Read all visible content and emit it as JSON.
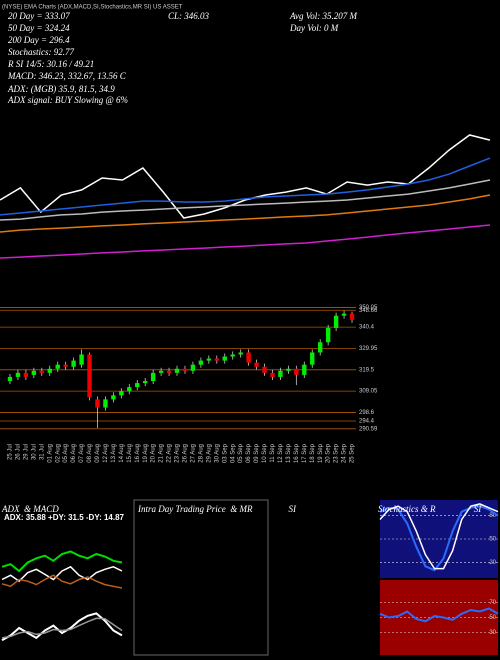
{
  "chart_data": [
    {
      "type": "line",
      "annotations": [
        "(NYSE) EMA Charts (ADX,MACD,SI,Stochastics,MR SI) US ASSET",
        "20 Day = 333.07",
        "50 Day = 324.24",
        "200 Day = 296.4",
        "Stochastics: 92.77",
        "R SI 14/5: 30.16 / 49.21",
        "MACD: 346.23, 332.67, 13.56 C",
        "ADX: (MGB) 35.9, 81.5, 34.9",
        "ADX signal: BUY Slowing @ 6%",
        "CL: 346.03",
        "Avg Vol: 35.207 M",
        "Day Vol: 0 M"
      ],
      "categories": [
        null,
        null,
        null,
        null,
        null,
        null,
        null,
        null,
        null,
        null,
        null,
        null,
        null,
        null,
        null,
        null,
        null,
        null,
        null,
        null,
        null,
        null,
        null,
        null,
        null
      ],
      "ylim": [
        0,
        100
      ],
      "series": [
        {
          "color": "#ffffff",
          "values": [
            50,
            56.7,
            43.3,
            52.8,
            55.6,
            62.2,
            61.1,
            67.8,
            54.4,
            40,
            42.2,
            45.6,
            50,
            52.8,
            54.4,
            56.7,
            53.3,
            60,
            58.3,
            60,
            58.9,
            67.8,
            77.8,
            86.1,
            83.3
          ]
        },
        {
          "color": "#bbbbbb",
          "values": [
            38.9,
            39.4,
            40.6,
            41.7,
            42.2,
            43.3,
            43.9,
            44.4,
            45,
            45.6,
            46.1,
            46.7,
            47.2,
            47.8,
            48.3,
            48.9,
            49.4,
            50,
            51.1,
            52.2,
            53.3,
            55,
            56.7,
            58.9,
            61.1
          ]
        },
        {
          "color": "#1f5fe0",
          "values": [
            41.7,
            42.8,
            43.9,
            45,
            46.1,
            47.2,
            48.3,
            49.4,
            49.4,
            48.9,
            48.9,
            49.4,
            50.6,
            51.7,
            52.2,
            52.8,
            53.3,
            54.4,
            55.6,
            57.2,
            58.9,
            61.1,
            64.4,
            68.9,
            73.3
          ]
        },
        {
          "color": "#e07a10",
          "values": [
            32.2,
            33.3,
            33.9,
            34.4,
            35,
            35.6,
            36.1,
            36.7,
            37.2,
            37.8,
            38.3,
            38.9,
            39.4,
            40,
            40.6,
            41.1,
            41.7,
            42.8,
            43.9,
            45,
            46.1,
            47.2,
            48.9,
            50.6,
            52.8
          ]
        },
        {
          "color": "#d020d0",
          "values": [
            17.8,
            18.3,
            18.9,
            19.4,
            20,
            20.6,
            21.1,
            21.7,
            22.2,
            22.8,
            23.3,
            23.9,
            24.4,
            25,
            25.6,
            26.1,
            27.2,
            28.3,
            29.4,
            30.6,
            31.7,
            32.8,
            33.9,
            35,
            36.1
          ]
        }
      ]
    },
    {
      "type": "candlestick",
      "categories": [
        "25 Jul",
        "26 Jul",
        "29 Jul",
        "30 Jul",
        "31 Jul",
        "01 Aug",
        "02 Aug",
        "05 Aug",
        "06 Aug",
        "07 Aug",
        "08 Aug",
        "09 Aug",
        "12 Aug",
        "13 Aug",
        "14 Aug",
        "15 Aug",
        "16 Aug",
        "19 Aug",
        "20 Aug",
        "21 Aug",
        "22 Aug",
        "23 Aug",
        "26 Aug",
        "27 Aug",
        "28 Aug",
        "29 Aug",
        "30 Aug",
        "03 Sep",
        "04 Sep",
        "05 Sep",
        "06 Sep",
        "09 Sep",
        "10 Sep",
        "11 Sep",
        "12 Sep",
        "13 Sep",
        "16 Sep",
        "17 Sep",
        "18 Sep",
        "19 Sep",
        "20 Sep",
        "23 Sep",
        "24 Sep",
        "25 Sep"
      ],
      "open": [
        314,
        316,
        318,
        317,
        319,
        318,
        320,
        322,
        321,
        322,
        327,
        305,
        301,
        305,
        307,
        309,
        311,
        313,
        314,
        318,
        319,
        318,
        320,
        319,
        322,
        324,
        325,
        324,
        326,
        327,
        328,
        323,
        321,
        318,
        316,
        319,
        320,
        317,
        322,
        328,
        333,
        340,
        346,
        347
      ],
      "high": [
        317.5,
        319.5,
        319.5,
        320.5,
        320.5,
        321.5,
        323.5,
        323.5,
        325.5,
        329.5,
        328,
        306.5,
        306.5,
        308.5,
        310.5,
        312.5,
        314.5,
        315.5,
        319.5,
        320.5,
        320.5,
        321.5,
        321.5,
        323.5,
        325.5,
        326.5,
        326.5,
        327.5,
        328.5,
        329.5,
        329.5,
        324.5,
        322.5,
        319.5,
        320.5,
        321.5,
        321.5,
        323.5,
        329.5,
        334.5,
        341.5,
        347.5,
        348.5,
        348
      ],
      "low": [
        312.5,
        314.5,
        314.5,
        315.5,
        316.5,
        316.5,
        318.5,
        319.5,
        319.5,
        320.5,
        304.5,
        291,
        299.5,
        303.5,
        305.5,
        307.5,
        309.5,
        311.5,
        312.5,
        316.5,
        316.5,
        316.5,
        317.5,
        317.5,
        320.5,
        322.5,
        322.5,
        322.5,
        324.5,
        325.5,
        321.5,
        319.5,
        316.5,
        314.5,
        314.5,
        317.5,
        312,
        315.5,
        320.5,
        326.5,
        331.5,
        338.5,
        344.5,
        342.5
      ],
      "close": [
        316,
        318,
        316,
        319,
        318,
        320,
        322,
        321,
        324,
        327,
        306,
        301,
        305,
        307,
        309,
        311,
        313,
        314,
        318,
        319,
        318,
        320,
        319,
        322,
        324,
        325,
        324,
        326,
        327,
        328,
        323,
        321,
        318,
        316,
        319,
        320,
        317,
        322,
        328,
        333,
        340,
        346,
        347,
        344
      ],
      "up_color": "#00ee00",
      "down_color": "#ee0000",
      "grid_color": "#b35900",
      "ylim": [
        285.1,
        353.7
      ],
      "yticks": [
        350.05,
        348.66,
        340.4,
        329.95,
        319.5,
        309.05,
        298.6,
        294.4,
        290.59
      ]
    },
    {
      "type": "line",
      "title": "ADX  & MACD",
      "subtitle": "ADX: 35.88  +DY: 31.5  -DY: 14.87",
      "categories": [
        null,
        null,
        null,
        null,
        null,
        null,
        null,
        null,
        null,
        null,
        null,
        null,
        null,
        null,
        null
      ],
      "ylim": [
        0,
        100
      ],
      "series": [
        {
          "color": "#00dd00",
          "values": [
            45,
            48,
            40,
            50,
            55,
            58,
            52,
            60,
            63,
            58,
            55,
            60,
            57,
            52,
            50
          ]
        },
        {
          "color": "#ffffff",
          "values": [
            30,
            35,
            28,
            38,
            42,
            36,
            30,
            40,
            45,
            35,
            30,
            38,
            42,
            45,
            40
          ]
        },
        {
          "color": "#c0601a",
          "values": [
            25,
            22,
            30,
            28,
            24,
            30,
            35,
            28,
            25,
            30,
            33,
            28,
            24,
            22,
            20
          ]
        }
      ]
    },
    {
      "type": "line",
      "categories": [
        null,
        null,
        null,
        null,
        null,
        null,
        null,
        null,
        null,
        null,
        null,
        null,
        null,
        null,
        null
      ],
      "ylim": [
        0,
        100
      ],
      "series": [
        {
          "color": "#ffffff",
          "values": [
            30,
            40,
            55,
            45,
            35,
            50,
            60,
            45,
            55,
            70,
            80,
            85,
            70,
            50,
            40
          ]
        },
        {
          "color": "#999999",
          "values": [
            35,
            38,
            45,
            48,
            42,
            45,
            52,
            50,
            52,
            60,
            68,
            75,
            74,
            62,
            50
          ]
        }
      ]
    },
    {
      "type": "panel",
      "title": "Intra Day Trading Price  & MR                SI"
    },
    {
      "type": "line",
      "title": "Stochastics & R                 SI",
      "background": "#10107a",
      "categories": [
        null,
        null,
        null,
        null,
        null,
        null,
        null,
        null,
        null,
        null,
        null,
        null,
        null,
        null
      ],
      "ylim": [
        0,
        100
      ],
      "yticks": [
        80,
        50,
        20
      ],
      "series": [
        {
          "color": "#2a6aff",
          "values": [
            85,
            90,
            88,
            70,
            40,
            15,
            10,
            25,
            60,
            85,
            90,
            92,
            88,
            80
          ]
        },
        {
          "color": "#ffffff",
          "values": [
            75,
            88,
            92,
            85,
            60,
            30,
            12,
            12,
            35,
            75,
            92,
            95,
            90,
            85
          ]
        }
      ]
    },
    {
      "type": "line",
      "background": "#9a0000",
      "categories": [
        null,
        null,
        null,
        null,
        null,
        null,
        null,
        null,
        null,
        null,
        null,
        null,
        null,
        null
      ],
      "ylim": [
        0,
        100
      ],
      "yticks": [
        70,
        50,
        30
      ],
      "series": [
        {
          "color": "#2a6aff",
          "values": [
            55,
            50,
            52,
            58,
            48,
            45,
            52,
            50,
            47,
            55,
            60,
            58,
            62,
            55
          ]
        }
      ]
    }
  ]
}
